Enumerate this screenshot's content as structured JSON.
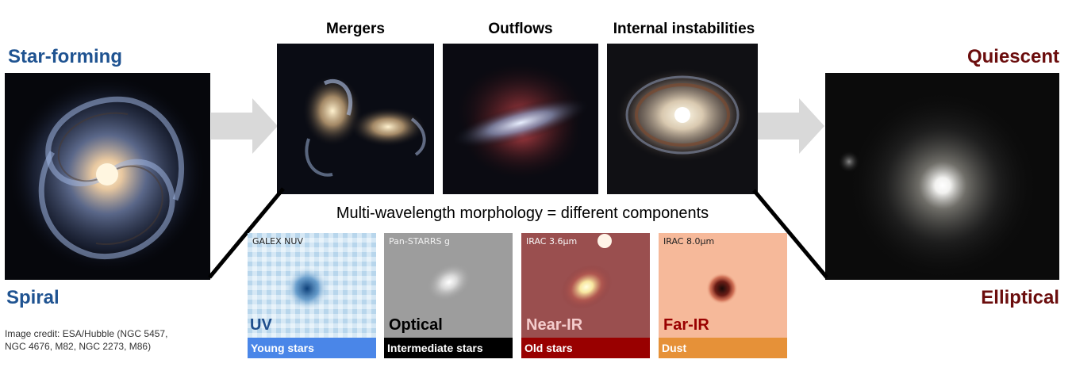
{
  "left": {
    "top_label": "Star-forming",
    "bottom_label": "Spiral"
  },
  "right": {
    "top_label": "Quiescent",
    "bottom_label": "Elliptical"
  },
  "mechanisms": [
    {
      "title": "Mergers"
    },
    {
      "title": "Outflows"
    },
    {
      "title": "Internal instabilities"
    }
  ],
  "credit": {
    "line1": "Image credit: ESA/Hubble (NGC 5457,",
    "line2": "NGC 4676, M82, NGC 2273, M86)"
  },
  "multiwavelength": {
    "title": "Multi-wavelength morphology = different components",
    "panels": [
      {
        "filter": "GALEX NUV",
        "band": "UV",
        "component": "Young stars",
        "bar_color": "#4a86e8",
        "band_color": "#1f4e8c"
      },
      {
        "filter": "Pan-STARRS g",
        "band": "Optical",
        "component": "Intermediate stars",
        "bar_color": "#000000",
        "band_color": "#000000"
      },
      {
        "filter": "IRAC 3.6μm",
        "band": "Near-IR",
        "component": "Old stars",
        "bar_color": "#990000",
        "band_color": "#f4cccc"
      },
      {
        "filter": "IRAC 8.0μm",
        "band": "Far-IR",
        "component": "Dust",
        "bar_color": "#e69138",
        "band_color": "#990000"
      }
    ]
  },
  "colors": {
    "arrow": "#d9d9d9",
    "left_label": "#1f5391",
    "right_label": "#6b0d0d"
  }
}
